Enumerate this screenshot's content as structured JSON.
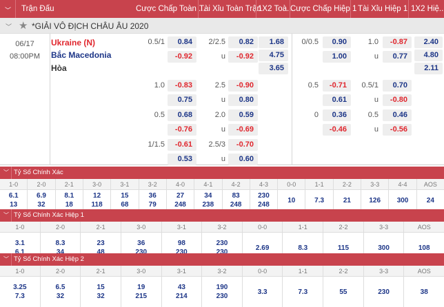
{
  "header": {
    "columns": [
      "Trận Đấu",
      "Cược Chấp Toàn ...",
      "Tài Xỉu Toàn Trận",
      "1X2 Toà...",
      "Cược Chấp Hiệp 1",
      "Tài Xỉu Hiệp 1",
      "1X2 Hiệ..."
    ]
  },
  "league": {
    "name": "*GIẢI VÔ ĐỊCH CHÂU ÂU 2020"
  },
  "match": {
    "date": "06/17",
    "time": "08:00PM",
    "home": "Ukraine (N)",
    "away": "Bắc Macedonia",
    "draw": "Hòa",
    "ft_1x2": [
      "1.68",
      "4.75",
      "3.65"
    ],
    "ht_1x2": [
      "2.40",
      "4.80",
      "2.11"
    ],
    "lines": [
      {
        "ft_hcp": [
          "0.5/1",
          "0.84",
          "-0.92"
        ],
        "ft_ou": [
          "2/2.5",
          "0.82",
          "-0.92"
        ],
        "ht_hcp": [
          "0/0.5",
          "0.90",
          "1.00"
        ],
        "ht_ou": [
          "1.0",
          "-0.87",
          "0.77"
        ]
      },
      {
        "ft_hcp": [
          "1.0",
          "-0.83",
          "0.75"
        ],
        "ft_ou": [
          "2.5",
          "-0.90",
          "0.80"
        ],
        "ht_hcp": [
          "0.5",
          "-0.71",
          "0.61"
        ],
        "ht_ou": [
          "0.5/1",
          "0.70",
          "-0.80"
        ]
      },
      {
        "ft_hcp": [
          "0.5",
          "0.68",
          "-0.76"
        ],
        "ft_ou": [
          "2.0",
          "0.59",
          "-0.69"
        ],
        "ht_hcp": [
          "0",
          "0.36",
          "-0.46"
        ],
        "ht_ou": [
          "0.5",
          "0.46",
          "-0.56"
        ]
      },
      {
        "ft_hcp": [
          "1/1.5",
          "-0.61",
          "0.53"
        ],
        "ft_ou": [
          "2.5/3",
          "-0.70",
          "0.60"
        ]
      }
    ],
    "under_label": "u"
  },
  "correct_score": [
    {
      "title": "Tỷ Số Chính Xác",
      "cols": [
        [
          "1-0",
          "6.1",
          "13"
        ],
        [
          "2-0",
          "6.9",
          "32"
        ],
        [
          "2-1",
          "8.1",
          "18"
        ],
        [
          "3-0",
          "12",
          "118"
        ],
        [
          "3-1",
          "15",
          "68"
        ],
        [
          "3-2",
          "36",
          "79"
        ],
        [
          "4-0",
          "27",
          "248"
        ],
        [
          "4-1",
          "34",
          "238"
        ],
        [
          "4-2",
          "83",
          "248"
        ],
        [
          "4-3",
          "230",
          "248"
        ],
        [
          "0-0",
          "10"
        ],
        [
          "1-1",
          "7.3"
        ],
        [
          "2-2",
          "21"
        ],
        [
          "3-3",
          "126"
        ],
        [
          "4-4",
          "300"
        ],
        [
          "AOS",
          "24"
        ]
      ]
    },
    {
      "title": "Tỷ Số Chính Xác Hiệp 1",
      "cols": [
        [
          "1-0",
          "3.1",
          "6.1"
        ],
        [
          "2-0",
          "8.3",
          "34"
        ],
        [
          "2-1",
          "23",
          "48"
        ],
        [
          "3-0",
          "36",
          "230"
        ],
        [
          "3-1",
          "98",
          "230"
        ],
        [
          "3-2",
          "230",
          "230"
        ],
        [
          "0-0",
          "2.69"
        ],
        [
          "1-1",
          "8.3"
        ],
        [
          "2-2",
          "115"
        ],
        [
          "3-3",
          "300"
        ],
        [
          "AOS",
          "108"
        ]
      ]
    },
    {
      "title": "Tỷ Số Chính Xác Hiệp 2",
      "cols": [
        [
          "1-0",
          "3.25",
          "7.3"
        ],
        [
          "2-0",
          "6.5",
          "32"
        ],
        [
          "2-1",
          "15",
          "32"
        ],
        [
          "3-0",
          "19",
          "215"
        ],
        [
          "3-1",
          "43",
          "214"
        ],
        [
          "3-2",
          "190",
          "230"
        ],
        [
          "0-0",
          "3.3"
        ],
        [
          "1-1",
          "7.3"
        ],
        [
          "2-2",
          "55"
        ],
        [
          "3-3",
          "230"
        ],
        [
          "AOS",
          "38"
        ]
      ]
    }
  ],
  "colors": {
    "header": "#c8434d",
    "positive": "#1c3587",
    "negative": "#e0262d",
    "home": "#e0262d",
    "away": "#1c3587"
  }
}
